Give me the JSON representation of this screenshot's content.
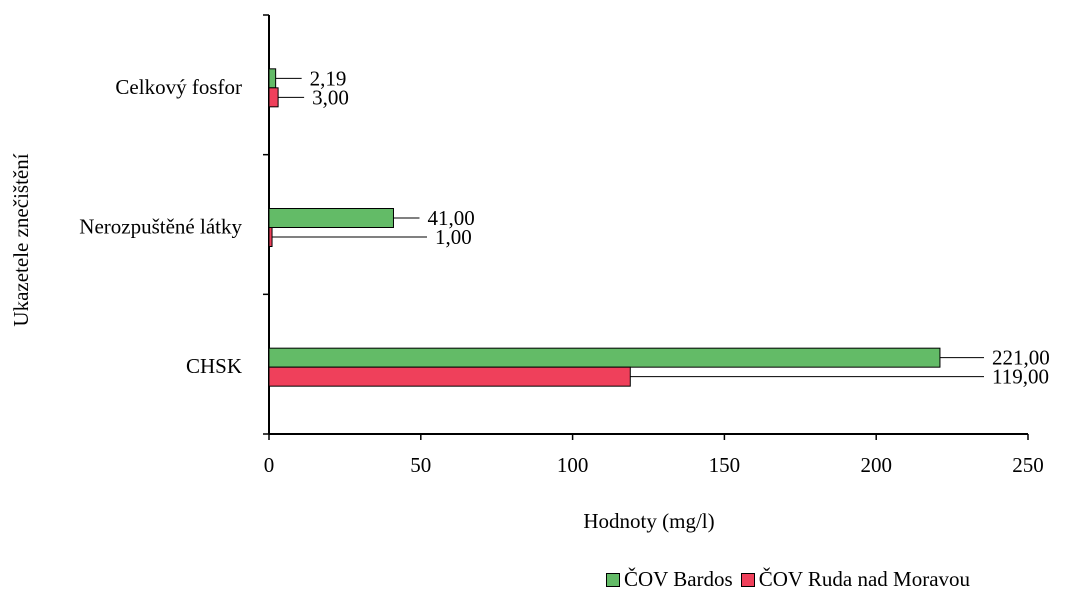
{
  "chart_data": {
    "type": "bar",
    "orientation": "horizontal",
    "categories": [
      "Celkový fosfor",
      "Nerozpuštěné látky",
      "CHSK"
    ],
    "series": [
      {
        "name": "ČOV Bardos",
        "color": "#63bb67",
        "values": [
          2.19,
          41.0,
          221.0
        ],
        "labels": [
          "2,19",
          "41,00",
          "221,00"
        ]
      },
      {
        "name": "ČOV Ruda nad Moravou",
        "color": "#ef405b",
        "values": [
          3.0,
          1.0,
          119.0
        ],
        "labels": [
          "3,00",
          "1,00",
          "119,00"
        ]
      }
    ],
    "xlabel": "Hodnoty (mg/l)",
    "ylabel": "Ukazetele znečištění",
    "xlim": [
      0,
      250
    ],
    "xticks": [
      0,
      50,
      100,
      150,
      200,
      250
    ],
    "grid": false,
    "legend_position": "bottom-right"
  }
}
